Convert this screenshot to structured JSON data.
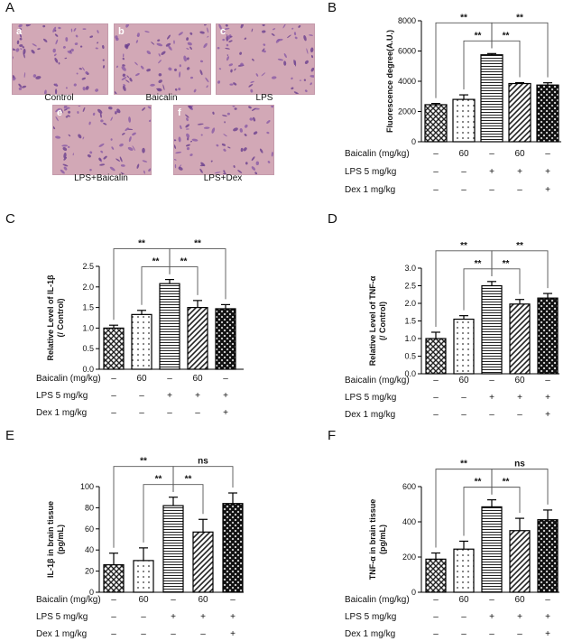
{
  "panel_letters": [
    "A",
    "B",
    "C",
    "D",
    "E",
    "F"
  ],
  "micrographs": [
    {
      "letter": "a",
      "caption": "Control"
    },
    {
      "letter": "b",
      "caption": "Baicalin"
    },
    {
      "letter": "c",
      "caption": "LPS"
    },
    {
      "letter": "e",
      "caption": "LPS+Baicalin"
    },
    {
      "letter": "f",
      "caption": "LPS+Dex"
    }
  ],
  "treatment_rows": [
    {
      "label": "Baicalin (mg/kg)",
      "marks": [
        "–",
        "60",
        "–",
        "60",
        "–"
      ]
    },
    {
      "label": "LPS 5 mg/kg",
      "marks": [
        "–",
        "–",
        "+",
        "+",
        "+"
      ]
    },
    {
      "label": "Dex 1 mg/kg",
      "marks": [
        "–",
        "–",
        "–",
        "–",
        "+"
      ]
    }
  ],
  "chart_data": [
    {
      "panel": "B",
      "type": "bar",
      "ylabel": "Fluorescence degree(A.U.)",
      "ylim": [
        0,
        8000
      ],
      "yticks": [
        "0",
        "2000",
        "4000",
        "6000",
        "8000"
      ],
      "values": [
        2450,
        2800,
        5750,
        3850,
        3750
      ],
      "errors": [
        80,
        300,
        80,
        60,
        150
      ],
      "patterns": [
        "crosshatch",
        "dots",
        "hlines",
        "diag",
        "checker"
      ],
      "comparisons": [
        {
          "from": 0,
          "to": 2,
          "label": "**"
        },
        {
          "from": 1,
          "to": 2,
          "label": "**"
        },
        {
          "from": 2,
          "to": 3,
          "label": "**"
        },
        {
          "from": 2,
          "to": 4,
          "label": "**"
        }
      ]
    },
    {
      "panel": "C",
      "type": "bar",
      "ylabel": "Relative Level of IL-1β\n(/ Control)",
      "ylim": [
        0,
        2.5
      ],
      "yticks": [
        "0.0",
        "0.5",
        "1.0",
        "1.5",
        "2.0",
        "2.5"
      ],
      "values": [
        1.0,
        1.33,
        2.08,
        1.5,
        1.47
      ],
      "errors": [
        0.07,
        0.1,
        0.1,
        0.17,
        0.1
      ],
      "patterns": [
        "crosshatch",
        "dots",
        "hlines",
        "diag",
        "checker"
      ],
      "comparisons": [
        {
          "from": 0,
          "to": 2,
          "label": "**"
        },
        {
          "from": 1,
          "to": 2,
          "label": "**"
        },
        {
          "from": 2,
          "to": 3,
          "label": "**"
        },
        {
          "from": 2,
          "to": 4,
          "label": "**"
        }
      ]
    },
    {
      "panel": "D",
      "type": "bar",
      "ylabel": "Relative Level of TNF-α\n(/ Control)",
      "ylim": [
        0,
        3.0
      ],
      "yticks": [
        "0.0",
        "0.5",
        "1.0",
        "1.5",
        "2.0",
        "2.5",
        "3.0"
      ],
      "values": [
        1.0,
        1.55,
        2.5,
        1.98,
        2.15
      ],
      "errors": [
        0.18,
        0.1,
        0.12,
        0.13,
        0.13
      ],
      "patterns": [
        "crosshatch",
        "dots",
        "hlines",
        "diag",
        "checker"
      ],
      "comparisons": [
        {
          "from": 0,
          "to": 2,
          "label": "**"
        },
        {
          "from": 1,
          "to": 2,
          "label": "**"
        },
        {
          "from": 2,
          "to": 3,
          "label": "**"
        },
        {
          "from": 2,
          "to": 4,
          "label": "**"
        }
      ]
    },
    {
      "panel": "E",
      "type": "bar",
      "ylabel": "IL-1β in brain tissue\n(pg/mL)",
      "ylim": [
        0,
        100
      ],
      "yticks": [
        "0",
        "20",
        "40",
        "60",
        "80",
        "100"
      ],
      "values": [
        26,
        30,
        82,
        57,
        84
      ],
      "errors": [
        11,
        12,
        8,
        12,
        10
      ],
      "patterns": [
        "crosshatch",
        "dots",
        "hlines",
        "diag",
        "checker"
      ],
      "comparisons": [
        {
          "from": 0,
          "to": 2,
          "label": "**"
        },
        {
          "from": 1,
          "to": 2,
          "label": "**"
        },
        {
          "from": 2,
          "to": 3,
          "label": "**"
        },
        {
          "from": 2,
          "to": 4,
          "label": "ns"
        }
      ]
    },
    {
      "panel": "F",
      "type": "bar",
      "ylabel": "TNF-α in brain tissue\n(pg/mL)",
      "ylim": [
        0,
        600
      ],
      "yticks": [
        "0",
        "200",
        "400",
        "600"
      ],
      "values": [
        188,
        245,
        485,
        350,
        412
      ],
      "errors": [
        35,
        45,
        40,
        70,
        55
      ],
      "patterns": [
        "crosshatch",
        "dots",
        "hlines",
        "diag",
        "checker"
      ],
      "comparisons": [
        {
          "from": 0,
          "to": 2,
          "label": "**"
        },
        {
          "from": 1,
          "to": 2,
          "label": "**"
        },
        {
          "from": 2,
          "to": 3,
          "label": "**"
        },
        {
          "from": 2,
          "to": 4,
          "label": "ns"
        }
      ]
    }
  ]
}
